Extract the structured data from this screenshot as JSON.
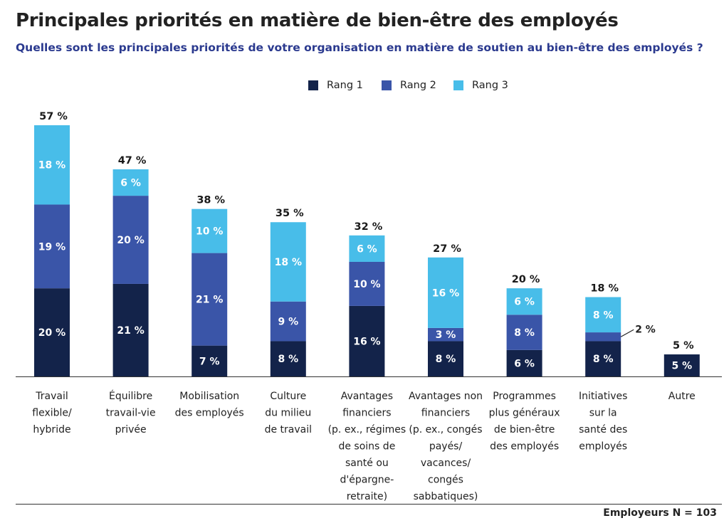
{
  "title": "Principales priorités en matière de bien-être des employés",
  "subtitle": "Quelles sont les principales priorités de votre organisation en matière de soutien au bien-être des employés ?",
  "footer_note": "Employeurs N = 103",
  "colors": {
    "rang1": "#13234a",
    "rang2": "#3a55a8",
    "rang3": "#48bde9",
    "autre": "#13234a"
  },
  "legend": [
    {
      "label": "Rang 1",
      "color": "#13234a"
    },
    {
      "label": "Rang 2",
      "color": "#3a55a8"
    },
    {
      "label": "Rang 3",
      "color": "#48bde9"
    }
  ],
  "chart_data": {
    "type": "bar",
    "stacked": true,
    "title": "Principales priorités en matière de bien-être des employés",
    "unit": "%",
    "categories": [
      [
        "Travail",
        "flexible/",
        "hybride"
      ],
      [
        "Équilibre",
        "travail-vie",
        "privée"
      ],
      [
        "Mobilisation",
        "des employés"
      ],
      [
        "Culture",
        "du milieu",
        "de travail"
      ],
      [
        "Avantages",
        "financiers",
        "(p. ex., régimes",
        "de soins de",
        "santé ou",
        "d'épargne-",
        "retraite)"
      ],
      [
        "Avantages non",
        "financiers",
        "(p. ex., congés",
        "payés/",
        "vacances/",
        "congés",
        "sabbatiques)"
      ],
      [
        "Programmes",
        "plus généraux",
        "de bien-être",
        "des employés"
      ],
      [
        "Initiatives",
        "sur la",
        "santé des",
        "employés"
      ],
      [
        "Autre"
      ]
    ],
    "series": [
      {
        "name": "Rang 1",
        "values": [
          20,
          21,
          7,
          8,
          16,
          8,
          6,
          8,
          5
        ]
      },
      {
        "name": "Rang 2",
        "values": [
          19,
          20,
          21,
          9,
          10,
          3,
          8,
          2,
          0
        ]
      },
      {
        "name": "Rang 3",
        "values": [
          18,
          6,
          10,
          18,
          6,
          16,
          6,
          8,
          0
        ]
      }
    ],
    "totals": [
      57,
      47,
      38,
      35,
      32,
      27,
      20,
      18,
      5
    ],
    "segment_labels": [
      [
        "20 %",
        "19 %",
        "18 %"
      ],
      [
        "21 %",
        "20 %",
        "6 %"
      ],
      [
        "7 %",
        "21 %",
        "10 %"
      ],
      [
        "8 %",
        "9 %",
        "18 %"
      ],
      [
        "16 %",
        "10 %",
        "6 %"
      ],
      [
        "8 %",
        "3 %",
        "16 %"
      ],
      [
        "6 %",
        "8 %",
        "6 %"
      ],
      [
        "8 %",
        "2 %",
        "8 %"
      ],
      [
        "5 %",
        "",
        ""
      ]
    ],
    "total_labels": [
      "57 %",
      "47 %",
      "38 %",
      "35 %",
      "32 %",
      "27 %",
      "20 %",
      "18 %",
      "5 %"
    ],
    "ylim": [
      0,
      57
    ],
    "legend_position": "top-center"
  }
}
